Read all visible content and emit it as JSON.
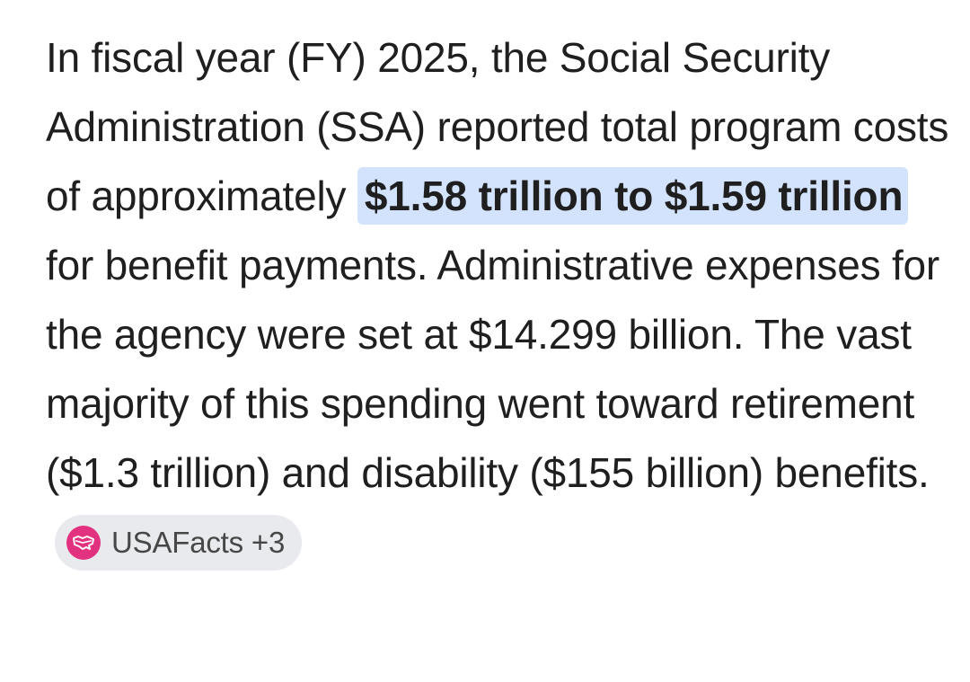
{
  "answer": {
    "part1": "In fiscal year (FY) 2025, the Social Security Administration (SSA) reported total program costs of approximately",
    "highlight": "$1.58 trillion to $1.59 trillion",
    "part2": "for benefit payments. Administrative expenses for the agency were set at $14.299 billion. The vast majority of this spending went toward retirement ($1.3 trillion) and disability ($155 billion) benefits."
  },
  "source_chip": {
    "icon": "usafacts-logo-icon",
    "label": "USAFacts +3",
    "icon_color": "#e2317f",
    "background": "#e9eaee"
  },
  "colors": {
    "highlight_background": "#d3e3fd",
    "text": "#1f1f1f"
  }
}
